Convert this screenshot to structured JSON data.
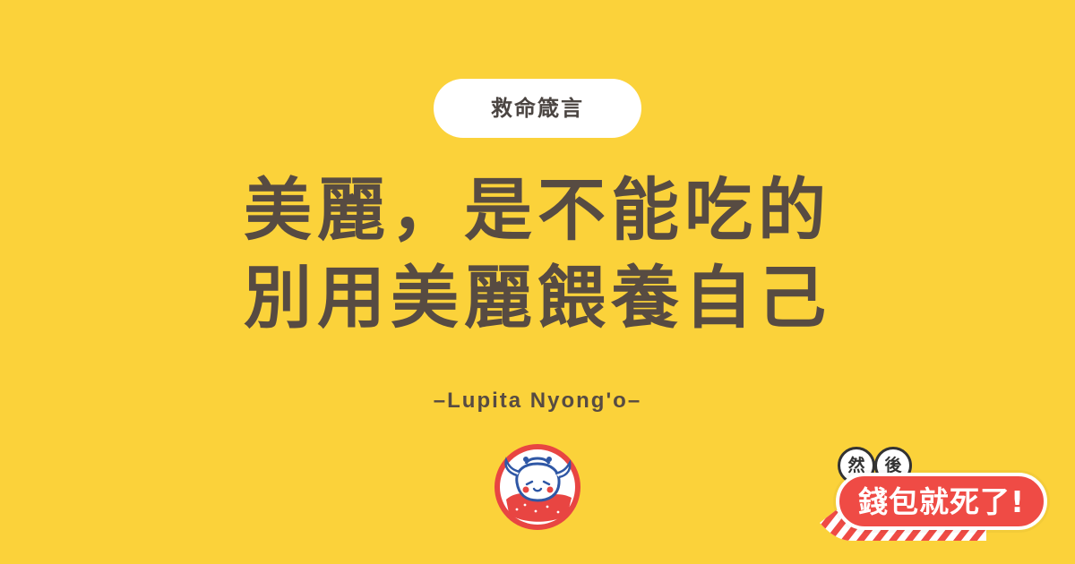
{
  "colors": {
    "background": "#fbd23a",
    "text": "#574b42",
    "pill_background": "#ffffff",
    "sticker_red": "#ef4b45",
    "sticker_outline": "#333333",
    "logo_red": "#e84542",
    "logo_blue": "#2f57a5"
  },
  "category": {
    "label": "救命箴言"
  },
  "quote": {
    "lines": [
      "美麗，是不能吃的",
      "別用美麗餵養自己"
    ]
  },
  "attribution": {
    "text": "–Lupita Nyong'o–"
  },
  "logo": {
    "icon": "coin-purse-character-icon"
  },
  "sticker": {
    "small_circles": [
      "然",
      "後"
    ],
    "comma": ",",
    "main_text": "錢包就死了!"
  }
}
